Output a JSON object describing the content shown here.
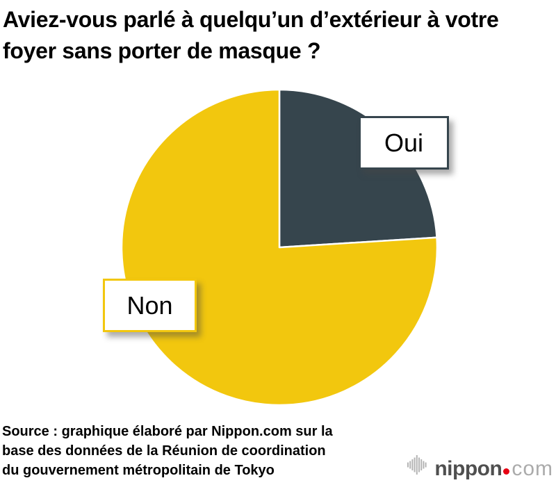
{
  "title": "Aviez-vous parlé à quelqu’un d’extérieur à votre foyer sans porter de masque ?",
  "chart_data": {
    "type": "pie",
    "title": "Aviez-vous parlé à quelqu’un d’extérieur à votre foyer sans porter de masque ?",
    "slices": [
      {
        "label": "Oui",
        "value": 24,
        "color": "#36454D"
      },
      {
        "label": "Non",
        "value": 76,
        "color": "#F2C70E"
      }
    ],
    "value_unit": "%",
    "values_estimated_from_angles": true,
    "start_angle_deg": -90,
    "direction": "clockwise",
    "legend_position": "callout-boxes-on-slices",
    "slice_divider_color": "#FFFFFF"
  },
  "source": {
    "lines": [
      "Source : graphique élaboré par Nippon.com sur la",
      "base des données de la Réunion de coordination",
      "du gouvernement métropolitain de Tokyo"
    ],
    "full_text": "Source : graphique élaboré par Nippon.com sur la base des données de la Réunion de coordination du gouvernement métropolitain de Tokyo"
  },
  "logo": {
    "brand": "nippon.com",
    "text_bold": "nippon",
    "text_light": "com",
    "colors": {
      "bold_text": "#4F4F4F",
      "light_text": "#ABABAB",
      "dot": "#E60012",
      "bars": "#B4B4B4"
    }
  }
}
